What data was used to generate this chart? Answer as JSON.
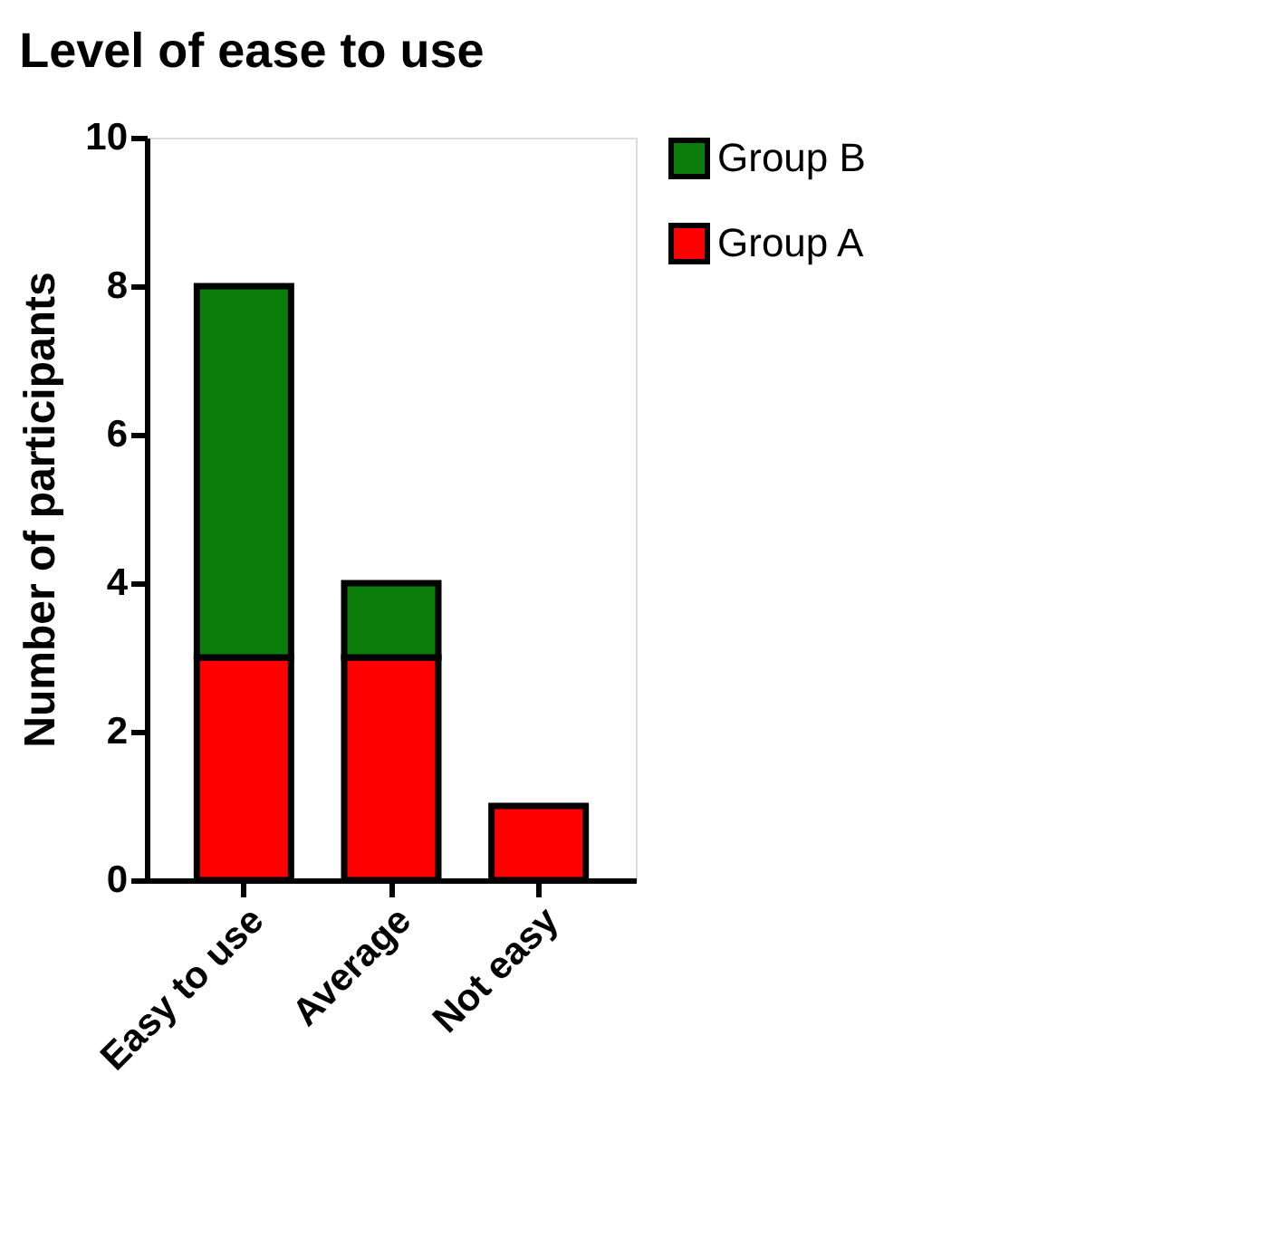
{
  "chart_data": {
    "type": "bar",
    "title": "Level of ease to use",
    "ylabel": "Number of participants",
    "categories": [
      "Easy to use",
      "Average",
      "Not easy"
    ],
    "series": [
      {
        "name": "Group A",
        "color": "#ff0000",
        "values": [
          3,
          3,
          1
        ]
      },
      {
        "name": "Group B",
        "color": "#0a7d0a",
        "values": [
          5,
          1,
          null
        ]
      }
    ],
    "stacked": true,
    "ylim": [
      0,
      10
    ],
    "yticks": [
      0,
      2,
      4,
      6,
      8,
      10
    ],
    "grid": false,
    "legend": "top right"
  }
}
